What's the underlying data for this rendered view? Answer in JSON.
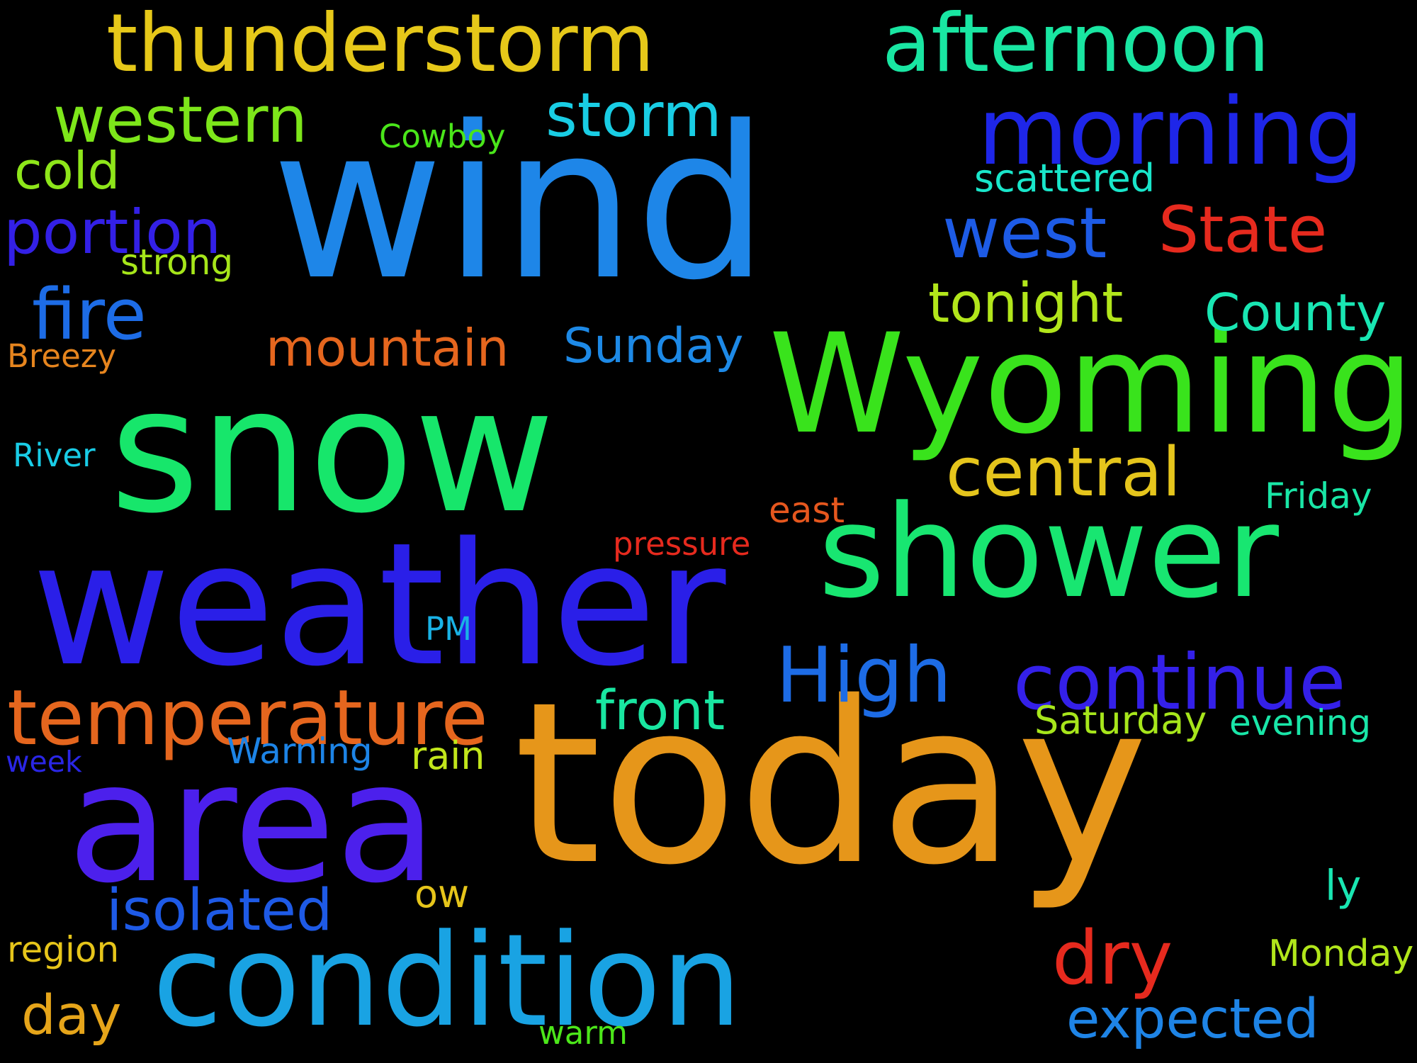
{
  "background": "#000000",
  "words": [
    {
      "text": "wind",
      "color": "#1e86e8"
    },
    {
      "text": "snow",
      "color": "#17e66b"
    },
    {
      "text": "today",
      "color": "#e6961a"
    },
    {
      "text": "weather",
      "color": "#2a1fe8"
    },
    {
      "text": "area",
      "color": "#4c20ec"
    },
    {
      "text": "condition",
      "color": "#19a3e3"
    },
    {
      "text": "Wyoming",
      "color": "#39e31c"
    },
    {
      "text": "thunderstorm",
      "color": "#e6c819"
    },
    {
      "text": "shower",
      "color": "#18e671"
    },
    {
      "text": "afternoon",
      "color": "#19e6a2"
    },
    {
      "text": "morning",
      "color": "#1e26e8"
    },
    {
      "text": "temperature",
      "color": "#e5661e"
    },
    {
      "text": "continue",
      "color": "#3420e9"
    },
    {
      "text": "western",
      "color": "#7de61a"
    },
    {
      "text": "storm",
      "color": "#19cde4"
    },
    {
      "text": "fire",
      "color": "#1d6ce6"
    },
    {
      "text": "High",
      "color": "#1d6ce6"
    },
    {
      "text": "State",
      "color": "#e62a1e"
    },
    {
      "text": "west",
      "color": "#1d5be6"
    },
    {
      "text": "central",
      "color": "#e5c51c"
    },
    {
      "text": "portion",
      "color": "#3320e6"
    },
    {
      "text": "mountain",
      "color": "#e5661e"
    },
    {
      "text": "tonight",
      "color": "#b2e61b"
    },
    {
      "text": "County",
      "color": "#19e6b3"
    },
    {
      "text": "dry",
      "color": "#e62a1e"
    },
    {
      "text": "expected",
      "color": "#1e84e6"
    },
    {
      "text": "front",
      "color": "#19e6a1"
    },
    {
      "text": "isolated",
      "color": "#1e5ae6"
    },
    {
      "text": "Sunday",
      "color": "#1d89e6"
    },
    {
      "text": "cold",
      "color": "#8ee61a"
    },
    {
      "text": "day",
      "color": "#e6a51a"
    },
    {
      "text": "evening",
      "color": "#19e6a8"
    },
    {
      "text": "Saturday",
      "color": "#a7e61b"
    },
    {
      "text": "rain",
      "color": "#c2e61b"
    },
    {
      "text": "Monday",
      "color": "#b1e61b"
    },
    {
      "text": "region",
      "color": "#e6c51a"
    },
    {
      "text": "Warning",
      "color": "#1d84e6"
    },
    {
      "text": "scattered",
      "color": "#19e6ca"
    },
    {
      "text": "east",
      "color": "#e6571e"
    },
    {
      "text": "Friday",
      "color": "#19e6a6"
    },
    {
      "text": "strong",
      "color": "#a6e61a"
    },
    {
      "text": "Cowboy",
      "color": "#4ae61a"
    },
    {
      "text": "pressure",
      "color": "#e62a1e"
    },
    {
      "text": "Breezy",
      "color": "#e6851e"
    },
    {
      "text": "River",
      "color": "#19cce6"
    },
    {
      "text": "PM",
      "color": "#19b2e6"
    },
    {
      "text": "ow",
      "color": "#e6c51a"
    },
    {
      "text": "ly",
      "color": "#19e6b2"
    },
    {
      "text": "warm",
      "color": "#4ce61a"
    },
    {
      "text": "week",
      "color": "#2a26e6"
    }
  ]
}
